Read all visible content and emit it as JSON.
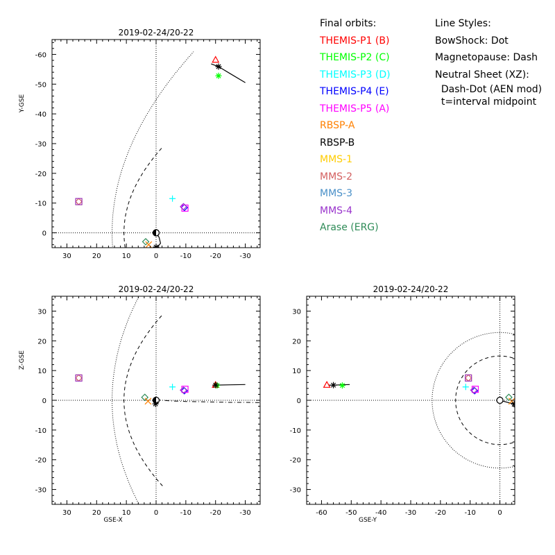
{
  "legend": {
    "orbits_title": "Final orbits:",
    "styles_title": "Line Styles:",
    "entries": [
      {
        "label": "THEMIS-P1 (B)",
        "color": "#ff0000"
      },
      {
        "label": "THEMIS-P2 (C)",
        "color": "#00ff00"
      },
      {
        "label": "THEMIS-P3 (D)",
        "color": "#00ffff"
      },
      {
        "label": "THEMIS-P4 (E)",
        "color": "#0000ff"
      },
      {
        "label": "THEMIS-P5 (A)",
        "color": "#ff00ff"
      },
      {
        "label": "RBSP-A",
        "color": "#ff8000"
      },
      {
        "label": "RBSP-B",
        "color": "#000000"
      },
      {
        "label": "MMS-1",
        "color": "#ffcc00"
      },
      {
        "label": "MMS-2",
        "color": "#d36060"
      },
      {
        "label": "MMS-3",
        "color": "#4a90c8"
      },
      {
        "label": "MMS-4",
        "color": "#9933cc"
      },
      {
        "label": "Arase (ERG)",
        "color": "#2e8b57"
      }
    ],
    "styles": [
      "BowShock: Dot",
      "Magnetopause: Dash",
      "Neutral Sheet (XZ):",
      "  Dash-Dot (AEN mod)",
      "  t=interval midpoint"
    ]
  },
  "chart_data": [
    {
      "type": "scatter",
      "title": "2019-02-24/20-22",
      "xlabel": "",
      "ylabel": "Y-GSE",
      "xlim": [
        35,
        -35
      ],
      "ylim": [
        5,
        -65
      ],
      "xticks": [
        30,
        20,
        10,
        0,
        -10,
        -20,
        -30
      ],
      "yticks": [
        0,
        -10,
        -20,
        -30,
        -40,
        -50,
        -60
      ],
      "points": [
        {
          "name": "THEMIS-P1 (B)",
          "x": -20.0,
          "y": -58.2,
          "marker": "triangle",
          "color": "#ff0000"
        },
        {
          "name": "THEMIS-P2 (C)",
          "x": -21.0,
          "y": -52.8,
          "marker": "asterisk",
          "color": "#00ff00"
        },
        {
          "name": "RBSP-B",
          "x": -21.0,
          "y": -55.9,
          "marker": "asterisk",
          "color": "#000000"
        },
        {
          "name": "THEMIS-P3 (D)",
          "x": -5.5,
          "y": -11.5,
          "marker": "plus",
          "color": "#00ffff"
        },
        {
          "name": "THEMIS-P4 (E)",
          "x": -9.5,
          "y": -8.5,
          "marker": "diamond",
          "color": "#0000ff"
        },
        {
          "name": "THEMIS-P5 (A)",
          "x": -9.7,
          "y": -8.3,
          "marker": "square",
          "color": "#ff00ff"
        },
        {
          "name": "MMS-4",
          "x": -9.2,
          "y": -8.8,
          "marker": "diamond",
          "color": "#9933cc"
        },
        {
          "name": "MMS-1",
          "x": 26.0,
          "y": -10.5,
          "marker": "square",
          "color": "#ffcc00"
        },
        {
          "name": "MMS-2",
          "x": 26.0,
          "y": -10.5,
          "marker": "diamond",
          "color": "#d36060"
        },
        {
          "name": "MMS-4",
          "x": 26.0,
          "y": -10.5,
          "marker": "square",
          "color": "#9933cc"
        },
        {
          "name": "Arase (ERG)",
          "x": 3.5,
          "y": 3.0,
          "marker": "diamond",
          "color": "#2e8b57"
        },
        {
          "name": "RBSP-A",
          "x": 2.5,
          "y": 4.0,
          "marker": "x",
          "color": "#ff8000"
        },
        {
          "name": "RBSP-B",
          "x": 0.0,
          "y": 4.8,
          "marker": "asterisk",
          "color": "#000000"
        }
      ],
      "tracks": [
        {
          "name": "RBSP-B",
          "color": "#000000",
          "x": [
            -18.5,
            -21.0,
            -25.0,
            -30.0
          ],
          "y": [
            -56.8,
            -55.9,
            -53.5,
            -50.5
          ]
        },
        {
          "name": "RBSP-B",
          "color": "#000000",
          "x": [
            0.0,
            -1.0,
            -1.5,
            -0.5
          ],
          "y": [
            0.0,
            1.5,
            3.5,
            4.8
          ]
        }
      ],
      "bowshock": {
        "standoff": 14.8,
        "flare": 20.3
      },
      "magnetopause": {
        "standoff": 10.8,
        "flare": 9.6
      }
    },
    {
      "type": "scatter",
      "title": "2019-02-24/20-22",
      "xlabel": "GSE-X",
      "ylabel": "Z-GSE",
      "xlim": [
        35,
        -35
      ],
      "ylim": [
        -35,
        35
      ],
      "xticks": [
        30,
        20,
        10,
        0,
        -10,
        -20,
        -30
      ],
      "yticks": [
        -30,
        -20,
        -10,
        0,
        10,
        20,
        30
      ],
      "points": [
        {
          "name": "THEMIS-P1 (B)",
          "x": -20.0,
          "y": 5.2,
          "marker": "triangle",
          "color": "#ff0000"
        },
        {
          "name": "THEMIS-P2 (C)",
          "x": -20.5,
          "y": 5.0,
          "marker": "asterisk",
          "color": "#00ff00"
        },
        {
          "name": "RBSP-B",
          "x": -20.0,
          "y": 5.1,
          "marker": "asterisk",
          "color": "#000000"
        },
        {
          "name": "THEMIS-P3 (D)",
          "x": -5.5,
          "y": 4.5,
          "marker": "plus",
          "color": "#00ffff"
        },
        {
          "name": "THEMIS-P4 (E)",
          "x": -9.5,
          "y": 3.2,
          "marker": "diamond",
          "color": "#0000ff"
        },
        {
          "name": "THEMIS-P5 (A)",
          "x": -9.7,
          "y": 3.7,
          "marker": "square",
          "color": "#ff00ff"
        },
        {
          "name": "MMS-4",
          "x": -9.2,
          "y": 3.4,
          "marker": "diamond",
          "color": "#9933cc"
        },
        {
          "name": "MMS-1",
          "x": 26.0,
          "y": 7.5,
          "marker": "square",
          "color": "#ffcc00"
        },
        {
          "name": "MMS-2",
          "x": 26.0,
          "y": 7.5,
          "marker": "diamond",
          "color": "#d36060"
        },
        {
          "name": "MMS-4",
          "x": 26.0,
          "y": 7.5,
          "marker": "square",
          "color": "#9933cc"
        },
        {
          "name": "Arase (ERG)",
          "x": 3.8,
          "y": 1.0,
          "marker": "diamond",
          "color": "#2e8b57"
        },
        {
          "name": "RBSP-A",
          "x": 2.7,
          "y": -0.3,
          "marker": "x",
          "color": "#ff8000"
        },
        {
          "name": "RBSP-B",
          "x": 0.2,
          "y": -1.2,
          "marker": "asterisk",
          "color": "#000000"
        }
      ],
      "tracks": [
        {
          "name": "RBSP-B",
          "color": "#000000",
          "x": [
            -20.0,
            -25.0,
            -30.0
          ],
          "y": [
            5.1,
            5.2,
            5.3
          ]
        },
        {
          "name": "RBSP-B",
          "color": "#000000",
          "x": [
            0.0,
            0.2
          ],
          "y": [
            0.0,
            -1.2
          ]
        }
      ],
      "bowshock": {
        "standoff": 14.8,
        "flare": 20.3
      },
      "magnetopause": {
        "standoff": 10.8,
        "flare": 9.6
      },
      "neutral_sheet": {
        "x": [
          0,
          -5,
          -10,
          -15,
          -20,
          -25,
          -30,
          -35
        ],
        "y": [
          0.2,
          -0.2,
          -0.4,
          -0.5,
          -0.6,
          -0.7,
          -0.7,
          -0.8
        ]
      }
    },
    {
      "type": "scatter",
      "title": "2019-02-24/20-22",
      "xlabel": "GSE-Y",
      "ylabel": "",
      "xlim": [
        -65,
        5
      ],
      "ylim": [
        -35,
        35
      ],
      "xticks": [
        -60,
        -50,
        -40,
        -30,
        -20,
        -10,
        0
      ],
      "yticks": [
        -30,
        -20,
        -10,
        0,
        10,
        20,
        30
      ],
      "points": [
        {
          "name": "THEMIS-P1 (B)",
          "x": -58.2,
          "y": 5.2,
          "marker": "triangle",
          "color": "#ff0000"
        },
        {
          "name": "THEMIS-P2 (C)",
          "x": -53.0,
          "y": 5.0,
          "marker": "asterisk",
          "color": "#00ff00"
        },
        {
          "name": "RBSP-B",
          "x": -56.0,
          "y": 5.1,
          "marker": "asterisk",
          "color": "#000000"
        },
        {
          "name": "THEMIS-P3 (D)",
          "x": -11.5,
          "y": 4.5,
          "marker": "plus",
          "color": "#00ffff"
        },
        {
          "name": "THEMIS-P4 (E)",
          "x": -8.5,
          "y": 3.2,
          "marker": "diamond",
          "color": "#0000ff"
        },
        {
          "name": "THEMIS-P5 (A)",
          "x": -8.3,
          "y": 3.7,
          "marker": "square",
          "color": "#ff00ff"
        },
        {
          "name": "MMS-4",
          "x": -8.8,
          "y": 3.4,
          "marker": "diamond",
          "color": "#9933cc"
        },
        {
          "name": "MMS-1",
          "x": -10.6,
          "y": 7.5,
          "marker": "square",
          "color": "#ffcc00"
        },
        {
          "name": "MMS-2",
          "x": -10.6,
          "y": 7.5,
          "marker": "diamond",
          "color": "#d36060"
        },
        {
          "name": "MMS-4",
          "x": -10.6,
          "y": 7.5,
          "marker": "square",
          "color": "#9933cc"
        },
        {
          "name": "Arase (ERG)",
          "x": 3.0,
          "y": 1.0,
          "marker": "diamond",
          "color": "#2e8b57"
        },
        {
          "name": "RBSP-A",
          "x": 4.0,
          "y": -0.3,
          "marker": "x",
          "color": "#ff8000"
        },
        {
          "name": "RBSP-B",
          "x": 4.8,
          "y": -1.3,
          "marker": "asterisk",
          "color": "#000000"
        }
      ],
      "tracks": [
        {
          "name": "RBSP-B",
          "color": "#000000",
          "x": [
            -57.5,
            -56.0,
            -53.0,
            -50.5
          ],
          "y": [
            5.1,
            5.1,
            5.2,
            5.3
          ]
        },
        {
          "name": "RBSP-B",
          "color": "#000000",
          "x": [
            0.0,
            4.8
          ],
          "y": [
            0.0,
            -1.3
          ]
        }
      ],
      "bowshock_radius": 22.8,
      "magnetopause_radius": 14.9
    }
  ]
}
